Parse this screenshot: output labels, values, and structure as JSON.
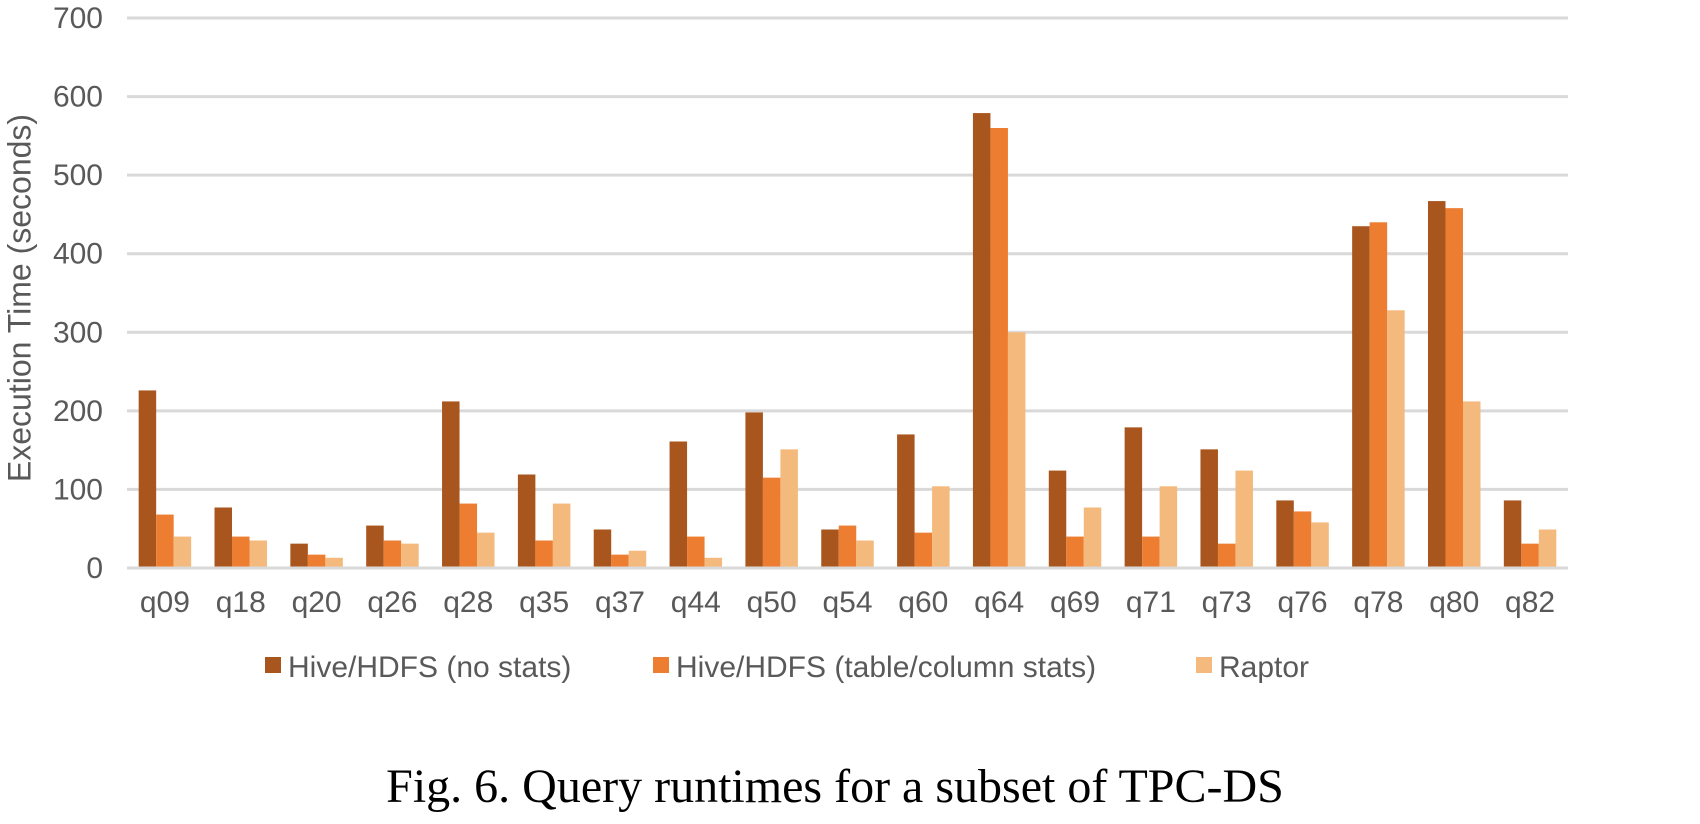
{
  "caption": "Fig. 6.  Query runtimes for a subset of TPC-DS",
  "chart_data": {
    "type": "bar",
    "title": "",
    "xlabel": "",
    "ylabel": "Execution Time (seconds)",
    "ylim": [
      0,
      700
    ],
    "yticks": [
      0,
      100,
      200,
      300,
      400,
      500,
      600,
      700
    ],
    "grid": true,
    "legend_position": "bottom",
    "categories": [
      "q09",
      "q18",
      "q20",
      "q26",
      "q28",
      "q35",
      "q37",
      "q44",
      "q50",
      "q54",
      "q60",
      "q64",
      "q69",
      "q71",
      "q73",
      "q76",
      "q78",
      "q80",
      "q82"
    ],
    "series": [
      {
        "name": "Hive/HDFS (no stats)",
        "color": "#A9561E",
        "values": [
          226,
          77,
          31,
          54,
          212,
          119,
          49,
          161,
          198,
          49,
          170,
          579,
          124,
          179,
          151,
          86,
          435,
          467,
          86
        ]
      },
      {
        "name": "Hive/HDFS (table/column stats)",
        "color": "#ED7D31",
        "values": [
          68,
          40,
          17,
          35,
          82,
          35,
          17,
          40,
          115,
          54,
          45,
          560,
          40,
          40,
          31,
          72,
          440,
          458,
          31
        ]
      },
      {
        "name": "Raptor",
        "color": "#F4B97C",
        "values": [
          40,
          35,
          13,
          31,
          45,
          82,
          22,
          13,
          151,
          35,
          104,
          300,
          77,
          104,
          124,
          58,
          328,
          212,
          49
        ]
      }
    ]
  }
}
